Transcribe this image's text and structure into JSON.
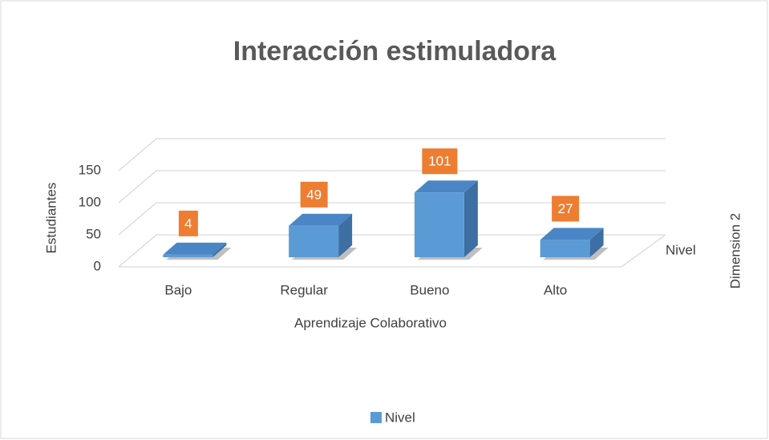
{
  "chart_data": {
    "type": "bar3d",
    "title": "Interacción estimuladora",
    "categories": [
      "Bajo",
      "Regular",
      "Bueno",
      "Alto"
    ],
    "series": [
      {
        "name": "Nivel",
        "color": "#5b9bd5",
        "values": [
          4,
          49,
          101,
          27
        ]
      }
    ],
    "label_color": "#ed7d31",
    "ylim": [
      0,
      150
    ],
    "yticks": [
      0,
      50,
      100,
      150
    ],
    "grid": true,
    "y_label": "Estudiantes",
    "x_label": "Aprendizaje Colaborativo",
    "z_label": "Dimension 2",
    "legend": "bottom"
  }
}
